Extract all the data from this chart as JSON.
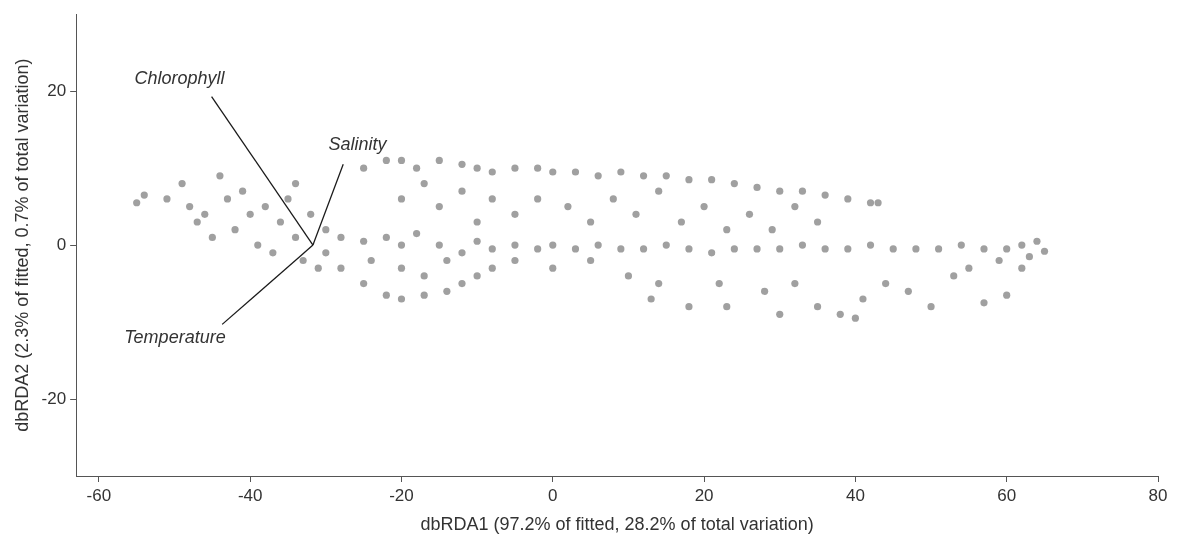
{
  "chart_data": {
    "type": "scatter",
    "xlabel": "dbRDA1 (97.2% of fitted, 28.2% of total variation)",
    "ylabel": "dbRDA2 (2.3% of fitted, 0.7% of total variation)",
    "xlim": [
      -63,
      80
    ],
    "xticks": [
      -60,
      -40,
      -20,
      0,
      20,
      40,
      60,
      80
    ],
    "ylim": [
      -30,
      30
    ],
    "yticks": [
      -20,
      0,
      20
    ],
    "grid": false,
    "legend": false,
    "series": [
      {
        "color": "#a0a0a0",
        "marker": "circle",
        "x": [
          -55,
          -54,
          -51,
          -49,
          -48,
          -47,
          -46,
          -45,
          -44,
          -43,
          -42,
          -41,
          -40,
          -39,
          -38,
          -37,
          -36,
          -35,
          -34,
          -34,
          -33,
          -32,
          -31,
          -30,
          -30,
          -28,
          -25,
          -22,
          -20,
          -18,
          -15,
          -12,
          -10,
          -8,
          -5,
          -2,
          0,
          3,
          6,
          9,
          12,
          15,
          18,
          21,
          24,
          27,
          30,
          33,
          36,
          39,
          42,
          45,
          48,
          51,
          54,
          57,
          60,
          62,
          64,
          65,
          63,
          59,
          55,
          -25,
          -22,
          -20,
          -18,
          -15,
          -12,
          -10,
          -8,
          -5,
          -2,
          0,
          3,
          6,
          9,
          12,
          15,
          18,
          21,
          24,
          27,
          30,
          33,
          36,
          39,
          42,
          43,
          -20,
          -17,
          -15,
          -12,
          -10,
          -8,
          -5,
          -2,
          2,
          5,
          8,
          11,
          14,
          17,
          20,
          23,
          26,
          29,
          32,
          35,
          -28,
          -25,
          -22,
          -20,
          -17,
          -14,
          -12,
          -10,
          -8,
          -5,
          -20,
          -17,
          -14,
          -24,
          0,
          5,
          10,
          13,
          14,
          18,
          22,
          23,
          28,
          30,
          32,
          35,
          38,
          40,
          41,
          44,
          47,
          50,
          53,
          57,
          60,
          62
        ],
        "values": [
          5.5,
          6.5,
          6,
          8,
          5,
          3,
          4,
          1,
          9,
          6,
          2,
          7,
          4,
          0,
          5,
          -1,
          3,
          6,
          8,
          1,
          -2,
          4,
          -3,
          2,
          -1,
          1,
          0.5,
          1,
          0,
          1.5,
          0,
          -1,
          0.5,
          -0.5,
          0,
          -0.5,
          0,
          -0.5,
          0,
          -0.5,
          -0.5,
          0,
          -0.5,
          -1,
          -0.5,
          -0.5,
          -0.5,
          0,
          -0.5,
          -0.5,
          0,
          -0.5,
          -0.5,
          -0.5,
          0,
          -0.5,
          -0.5,
          0,
          0.5,
          -0.8,
          -1.5,
          -2,
          -3,
          10,
          11,
          11,
          10,
          11,
          10.5,
          10,
          9.5,
          10,
          10,
          9.5,
          9.5,
          9,
          9.5,
          9,
          9,
          8.5,
          8.5,
          8,
          7.5,
          7,
          7,
          6.5,
          6,
          5.5,
          5.5,
          6,
          8,
          5,
          7,
          3,
          6,
          4,
          6,
          5,
          3,
          6,
          4,
          7,
          3,
          5,
          2,
          4,
          2,
          5,
          3,
          -3,
          -5,
          -6.5,
          -7,
          -6.5,
          -6,
          -5,
          -4,
          -3,
          -2,
          -3,
          -4,
          -2,
          -2,
          -3,
          -2,
          -4,
          -7,
          -5,
          -8,
          -5,
          -8,
          -6,
          -9,
          -5,
          -8,
          -9,
          -9.5,
          -7,
          -5,
          -6,
          -8,
          -4,
          -7.5,
          -6.5,
          -3
        ]
      },
      {
        "type": "line",
        "name": "Chlorophyll",
        "marker": "none",
        "color": "#1a1a1a",
        "x": [
          -31.7,
          -45.1
        ],
        "values": [
          0,
          19.3
        ]
      },
      {
        "type": "line",
        "name": "Salinity",
        "marker": "none",
        "color": "#1a1a1a",
        "x": [
          -31.7,
          -27.7
        ],
        "values": [
          0,
          10.5
        ]
      },
      {
        "type": "line",
        "name": "Temperature",
        "marker": "none",
        "color": "#1a1a1a",
        "x": [
          -31.7,
          -43.7
        ],
        "values": [
          0,
          -10.3
        ]
      }
    ]
  }
}
